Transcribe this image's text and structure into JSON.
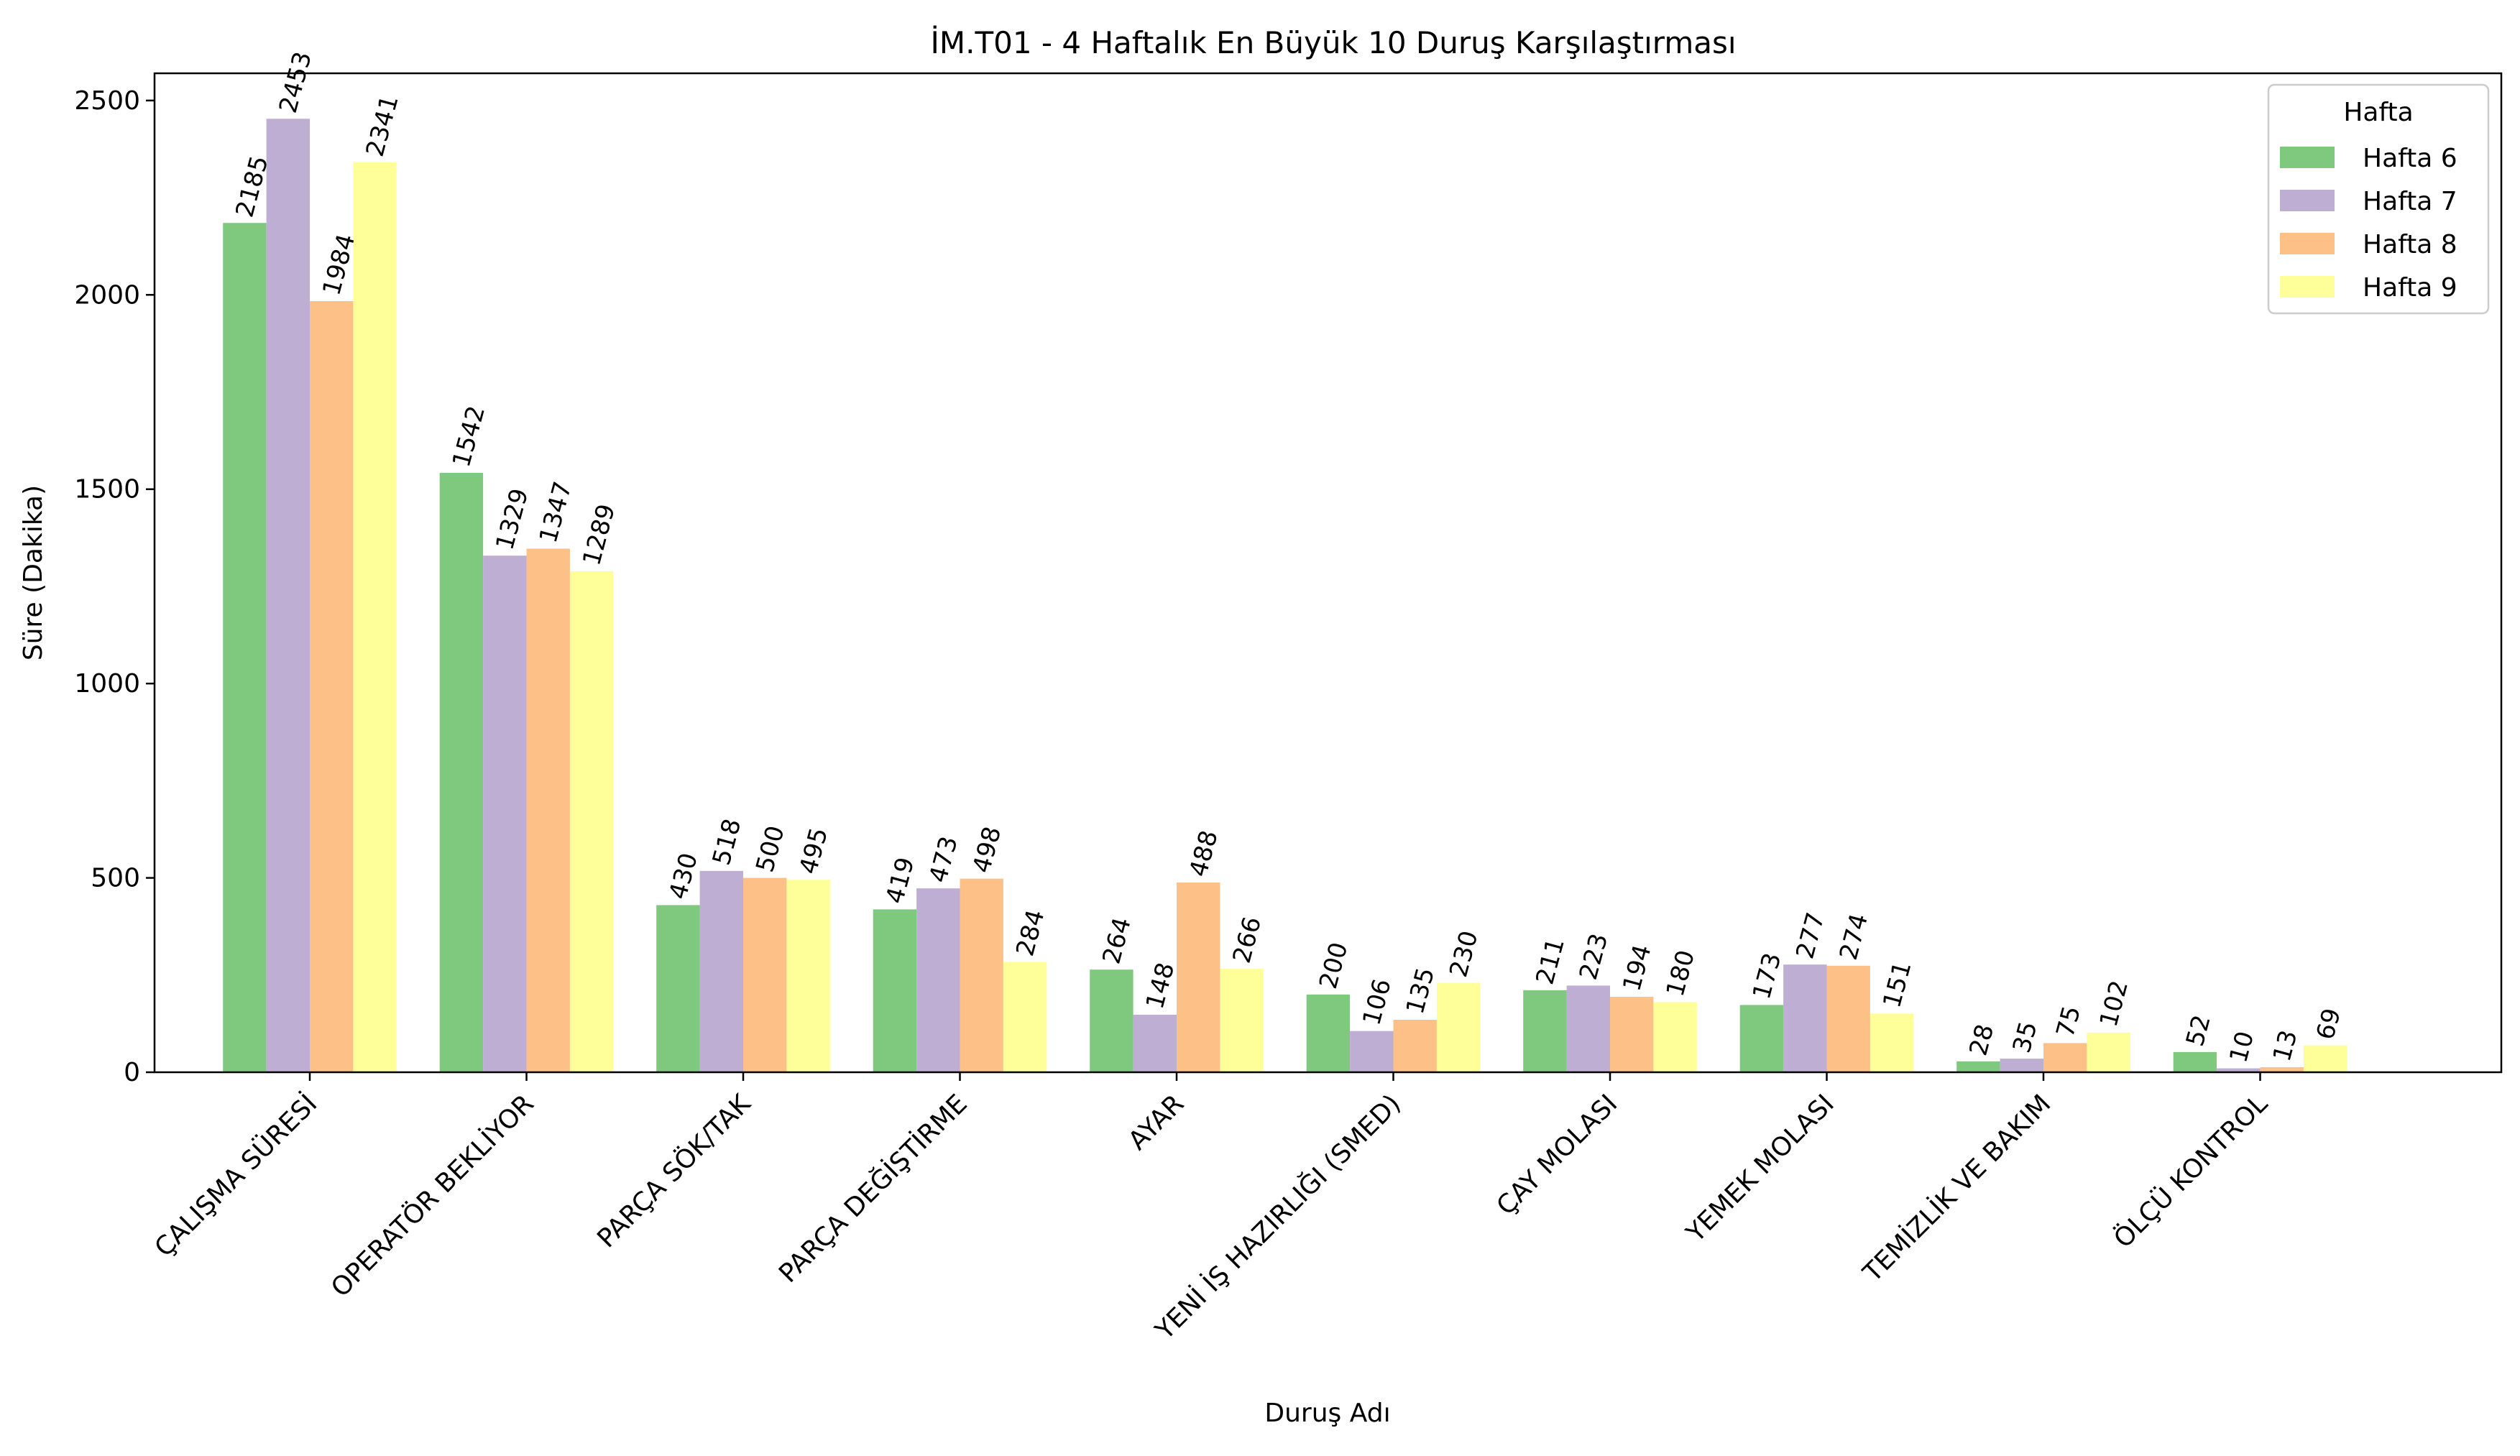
{
  "chart_data": {
    "type": "bar",
    "title": "İM.T01 - 4 Haftalık En Büyük 10 Duruş Karşılaştırması",
    "xlabel": "Duruş Adı",
    "ylabel": "Süre (Dakika)",
    "ylim": [
      0,
      2570
    ],
    "yticks": [
      "0",
      "500",
      "1000",
      "1500",
      "2000",
      "2500"
    ],
    "categories": [
      "ÇALIŞMA SÜRESİ",
      "OPERATÖR BEKLİYOR",
      "PARÇA SÖK/TAK",
      "PARÇA DEĞİŞTİRME",
      "AYAR",
      "YENİ İŞ HAZIRLIĞI (SMED)",
      "ÇAY MOLASI",
      "YEMEK MOLASI",
      "TEMİZLİK VE BAKIM",
      "ÖLÇÜ KONTROL"
    ],
    "series": [
      {
        "name": "Hafta 6",
        "color": "#7fc97f",
        "values": [
          2185,
          1542,
          430,
          419,
          264,
          200,
          211,
          173,
          28,
          52
        ]
      },
      {
        "name": "Hafta 7",
        "color": "#beaed4",
        "values": [
          2453,
          1329,
          518,
          473,
          148,
          106,
          223,
          277,
          35,
          10
        ]
      },
      {
        "name": "Hafta 8",
        "color": "#fdc086",
        "values": [
          1984,
          1347,
          500,
          498,
          488,
          135,
          194,
          274,
          75,
          13
        ]
      },
      {
        "name": "Hafta 9",
        "color": "#ffff99",
        "values": [
          2341,
          1289,
          495,
          284,
          266,
          230,
          180,
          151,
          102,
          69
        ]
      }
    ],
    "legend": {
      "title": "Hafta",
      "position": "top-right"
    },
    "grid": false
  }
}
